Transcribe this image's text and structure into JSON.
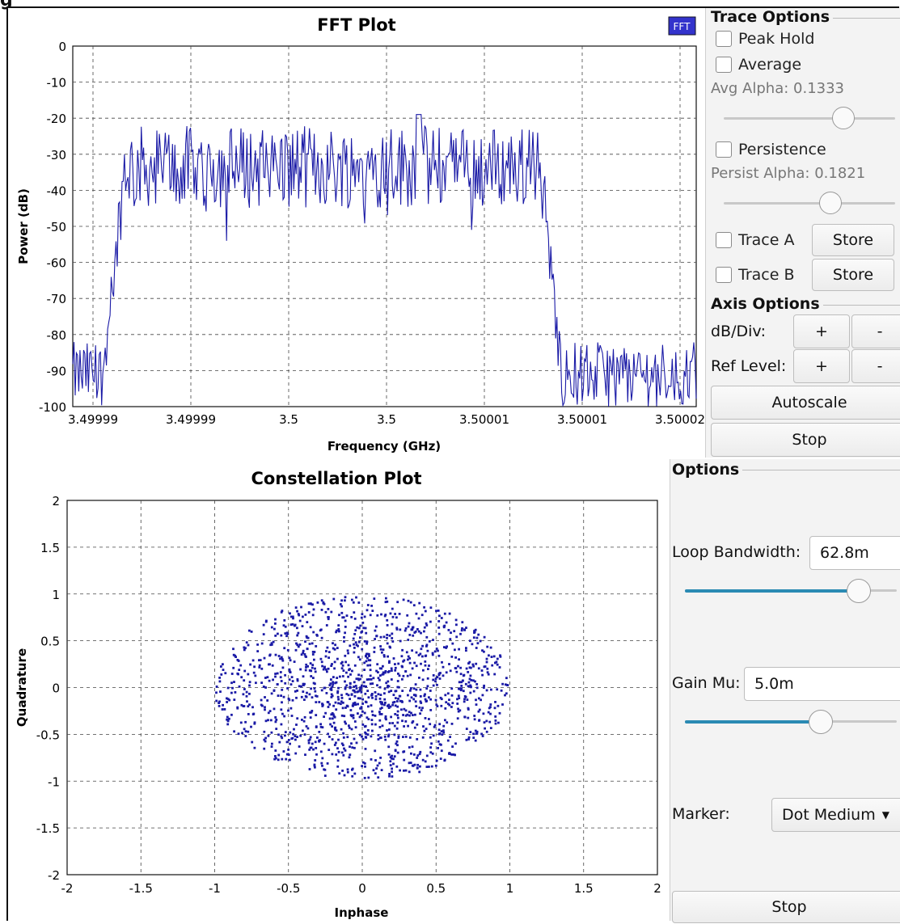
{
  "corner_letter": "g",
  "fft": {
    "title": "FFT Plot",
    "badge": "FFT",
    "ylabel": "Power (dB)",
    "xlabel": "Frequency (GHz)",
    "yticks": [
      "0",
      "-10",
      "-20",
      "-30",
      "-40",
      "-50",
      "-60",
      "-70",
      "-80",
      "-90",
      "-100"
    ],
    "xticks": [
      "3.49999",
      "3.49999",
      "3.5",
      "3.5",
      "3.50001",
      "3.50001",
      "3.50002"
    ]
  },
  "trace_options": {
    "title": "Trace Options",
    "peak_hold": "Peak Hold",
    "average": "Average",
    "avg_alpha": "Avg Alpha: 0.1333",
    "avg_alpha_value": 0.1333,
    "persistence": "Persistence",
    "persist_alpha": "Persist Alpha: 0.1821",
    "persist_alpha_value": 0.1821,
    "trace_a": "Trace A",
    "trace_b": "Trace B",
    "store_a": "Store",
    "store_b": "Store"
  },
  "axis_options": {
    "title": "Axis Options",
    "db_div": "dB/Div:",
    "ref_level": "Ref Level:",
    "plus": "+",
    "minus": "-",
    "autoscale": "Autoscale",
    "stop": "Stop"
  },
  "constellation": {
    "title": "Constellation Plot",
    "xlabel": "Inphase",
    "ylabel": "Quadrature",
    "xticks": [
      "-2",
      "-1.5",
      "-1",
      "-0.5",
      "0",
      "0.5",
      "1",
      "1.5",
      "2"
    ],
    "yticks": [
      "2",
      "1.5",
      "1",
      "0.5",
      "0",
      "-0.5",
      "-1",
      "-1.5",
      "-2"
    ]
  },
  "options": {
    "title": "Options",
    "loop_bw_label": "Loop Bandwidth:",
    "loop_bw_value": "62.8m",
    "loop_bw_slider": 0.82,
    "gain_mu_label": "Gain Mu:",
    "gain_mu_value": "5.0m",
    "gain_mu_slider": 0.64,
    "marker_label": "Marker:",
    "marker_value": "Dot Medium",
    "stop": "Stop"
  },
  "colors": {
    "trace": "#1a1aa6",
    "accent": "#2a8ab3",
    "badge": "#3333cc"
  },
  "chart_data": [
    {
      "type": "line",
      "title": "FFT Plot",
      "xlabel": "Frequency (GHz)",
      "ylabel": "Power (dB)",
      "ylim": [
        -100,
        0
      ],
      "xlim": [
        3.49999,
        3.50002
      ],
      "grid": true,
      "series": [
        {
          "profile": {
            "noise_floor_db": [
              -100,
              -82
            ],
            "passband_db": [
              -45,
              -22
            ],
            "passband_x": [
              3.4999925,
              3.5000125
            ],
            "peak_db": -19
          }
        }
      ]
    },
    {
      "type": "scatter",
      "title": "Constellation Plot",
      "xlabel": "Inphase",
      "ylabel": "Quadrature",
      "xlim": [
        -2,
        2
      ],
      "ylim": [
        -2,
        2
      ],
      "grid": true,
      "series": [
        {
          "distribution": {
            "center": [
              0,
              0
            ],
            "radius_x": 1.0,
            "radius_y": 0.98,
            "count": 1400
          }
        }
      ]
    }
  ]
}
